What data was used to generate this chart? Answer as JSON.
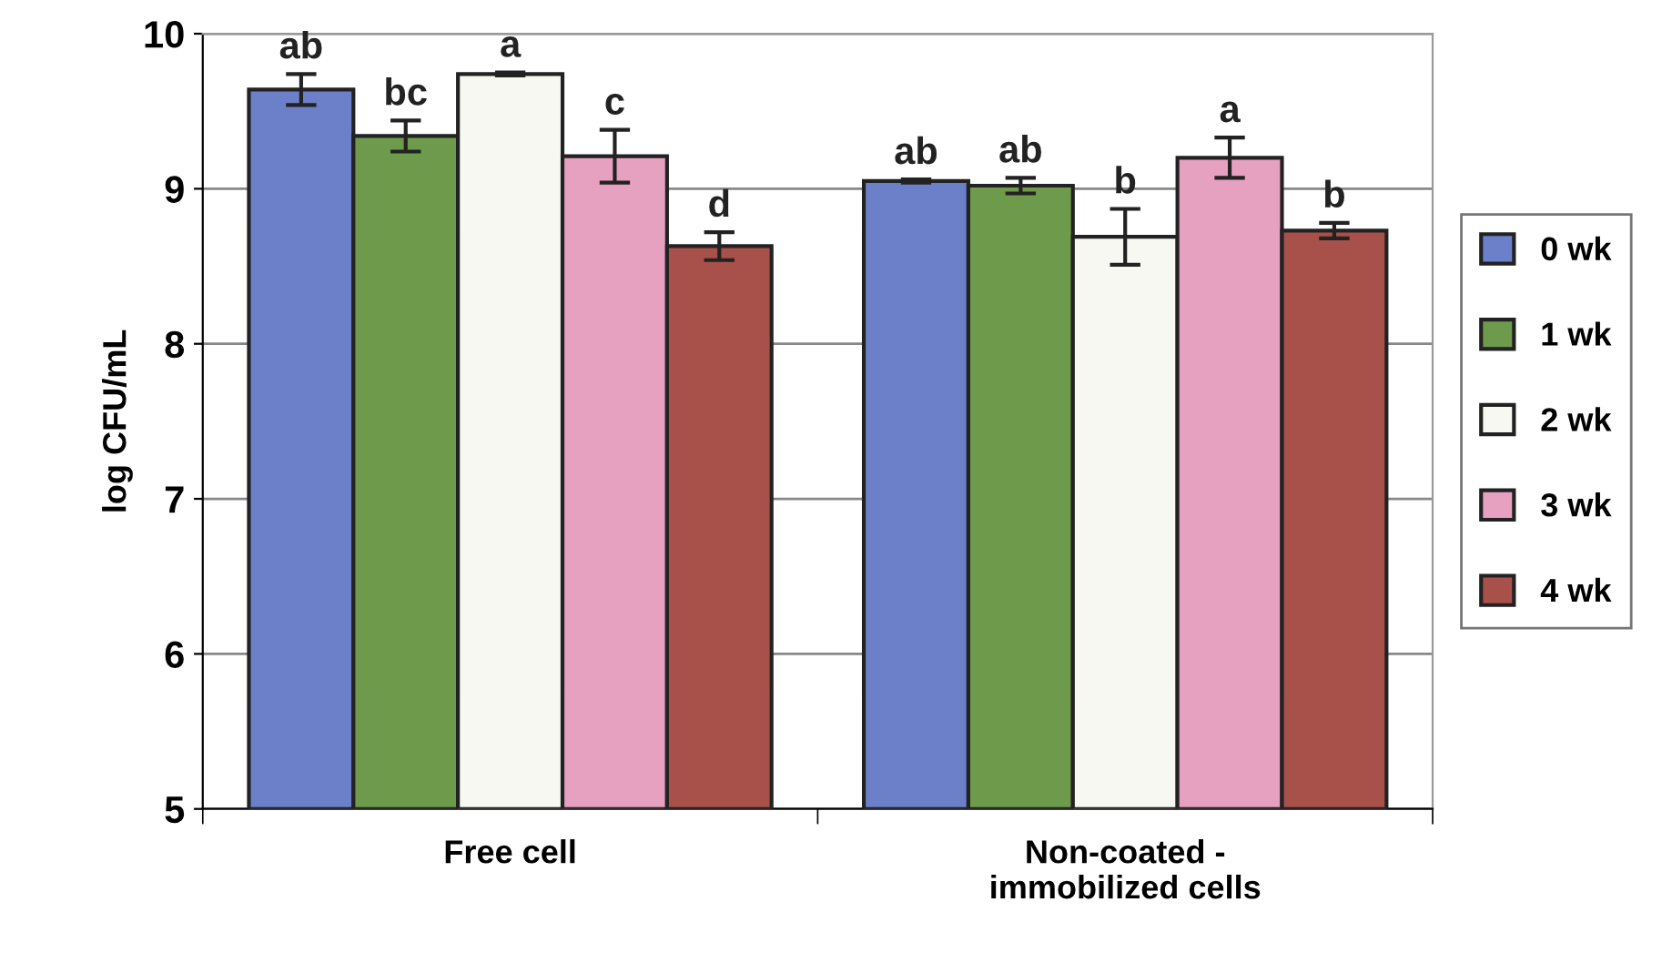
{
  "chart_data": {
    "type": "bar",
    "ylabel": "log CFU/mL",
    "categories": [
      "Free cell",
      "Non-coated -\nimmobilized cells"
    ],
    "ylim": [
      5,
      10
    ],
    "yticks": [
      5,
      6,
      7,
      8,
      9,
      10
    ],
    "grid": "y",
    "legend": "right",
    "series": [
      {
        "name": "0 wk",
        "color": "#6b80c8",
        "values": [
          9.64,
          9.05
        ],
        "errors": [
          0.1,
          0.01
        ],
        "value_labels": [
          "ab",
          "ab"
        ]
      },
      {
        "name": "1 wk",
        "color": "#6e9a4c",
        "values": [
          9.34,
          9.02
        ],
        "errors": [
          0.1,
          0.05
        ],
        "value_labels": [
          "bc",
          "ab"
        ]
      },
      {
        "name": "2 wk",
        "color": "#f8f8f2",
        "values": [
          9.74,
          8.69
        ],
        "errors": [
          0.01,
          0.18
        ],
        "value_labels": [
          "a",
          "b"
        ]
      },
      {
        "name": "3 wk",
        "color": "#e6a0c0",
        "values": [
          9.21,
          9.2
        ],
        "errors": [
          0.17,
          0.13
        ],
        "value_labels": [
          "c",
          "a"
        ]
      },
      {
        "name": "4 wk",
        "color": "#a8504a",
        "values": [
          8.63,
          8.73
        ],
        "errors": [
          0.09,
          0.05
        ],
        "value_labels": [
          "d",
          "b"
        ]
      }
    ]
  }
}
